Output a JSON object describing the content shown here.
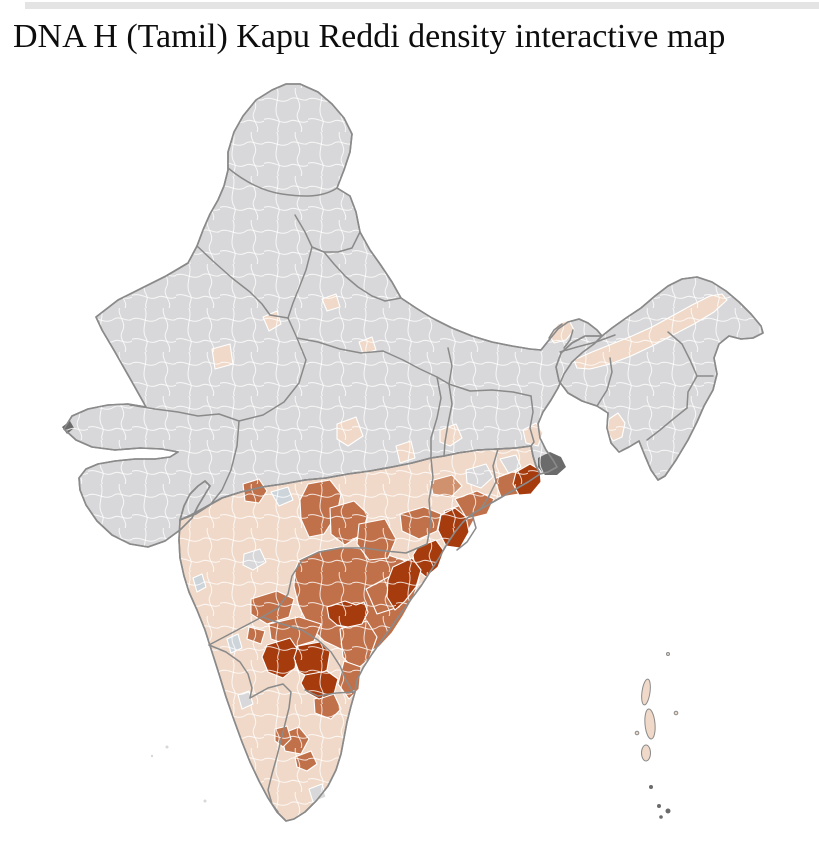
{
  "page": {
    "title": "DNA H (Tamil) Kapu Reddi density interactive map",
    "top_bar_color": "#e4e4e4",
    "background_color": "#ffffff"
  },
  "map": {
    "name": "india-district-density-choropleth",
    "palette": {
      "no_data": "#d8d8da",
      "zero": "#cdd5db",
      "very_low": "#f6ede6",
      "low": "#f0d9c8",
      "medium_low": "#d0916e",
      "medium": "#c1714a",
      "high": "#a63c0e",
      "marsh": "#6b6b6b",
      "state_border": "#8a8a8a",
      "district_border": "#ffffff"
    },
    "regions": [
      {
        "id": "north-india",
        "level": "no_data"
      },
      {
        "id": "peninsula",
        "level": "low"
      },
      {
        "id": "northeast-india",
        "level": "no_data"
      },
      {
        "id": "assam-valley",
        "level": "low"
      },
      {
        "id": "sikkim",
        "level": "low"
      },
      {
        "id": "tripura",
        "level": "low"
      },
      {
        "id": "west-bengal-south",
        "level": "low"
      },
      {
        "id": "rajasthan-east-district",
        "level": "low"
      },
      {
        "id": "up-west-district",
        "level": "low"
      },
      {
        "id": "up-central-district",
        "level": "low"
      },
      {
        "id": "up-east-district",
        "level": "low"
      },
      {
        "id": "mp-central-district",
        "level": "low"
      },
      {
        "id": "mp-east-district",
        "level": "low"
      },
      {
        "id": "chhattisgarh-north-district",
        "level": "low"
      },
      {
        "id": "odisha-gray-1",
        "level": "no_data"
      },
      {
        "id": "odisha-gray-2",
        "level": "no_data"
      },
      {
        "id": "maharashtra-zero-district",
        "level": "zero"
      },
      {
        "id": "maharashtra-gray-district",
        "level": "no_data"
      },
      {
        "id": "mumbai",
        "level": "zero"
      },
      {
        "id": "karnataka-coast-zero",
        "level": "zero"
      },
      {
        "id": "karnataka-gray-district",
        "level": "no_data"
      },
      {
        "id": "tamilnadu-gray-district",
        "level": "no_data"
      },
      {
        "id": "hyderabad",
        "level": "no_data"
      },
      {
        "id": "khammam-pale",
        "level": "very_low"
      },
      {
        "id": "guntur-pale",
        "level": "very_low"
      },
      {
        "id": "adilabad",
        "level": "medium_low"
      },
      {
        "id": "odisha-interior",
        "level": "medium_low"
      },
      {
        "id": "telangana",
        "level": "medium"
      },
      {
        "id": "nagpur",
        "level": "medium"
      },
      {
        "id": "chandrapur",
        "level": "medium"
      },
      {
        "id": "bastar",
        "level": "medium"
      },
      {
        "id": "odisha-southwest-1",
        "level": "medium"
      },
      {
        "id": "odisha-southwest-2",
        "level": "medium"
      },
      {
        "id": "vizianagaram",
        "level": "medium"
      },
      {
        "id": "srikakulam-west",
        "level": "medium"
      },
      {
        "id": "west-godavari",
        "level": "medium"
      },
      {
        "id": "prakasam",
        "level": "medium"
      },
      {
        "id": "nellore",
        "level": "medium"
      },
      {
        "id": "kurnool",
        "level": "medium"
      },
      {
        "id": "raichur-bellary",
        "level": "medium"
      },
      {
        "id": "bellary-south",
        "level": "medium"
      },
      {
        "id": "jalgaon",
        "level": "medium"
      },
      {
        "id": "vellore",
        "level": "medium"
      },
      {
        "id": "coimbatore",
        "level": "medium"
      },
      {
        "id": "erode",
        "level": "medium"
      },
      {
        "id": "kanyakumari",
        "level": "medium"
      },
      {
        "id": "srikakulam-coast",
        "level": "high"
      },
      {
        "id": "visakhapatnam",
        "level": "high"
      },
      {
        "id": "east-godavari",
        "level": "high"
      },
      {
        "id": "krishna-coast",
        "level": "high"
      },
      {
        "id": "guntur",
        "level": "high"
      },
      {
        "id": "anantapur",
        "level": "high"
      },
      {
        "id": "kadapa",
        "level": "high"
      },
      {
        "id": "chittoor",
        "level": "high"
      },
      {
        "id": "sundarbans-delta",
        "level": "marsh"
      },
      {
        "id": "kutch-creek",
        "level": "marsh"
      },
      {
        "id": "andaman-islands",
        "level": "low"
      },
      {
        "id": "nicobar-islands",
        "level": "marsh"
      },
      {
        "id": "lakshadweep-islands",
        "level": "no_data"
      }
    ]
  }
}
